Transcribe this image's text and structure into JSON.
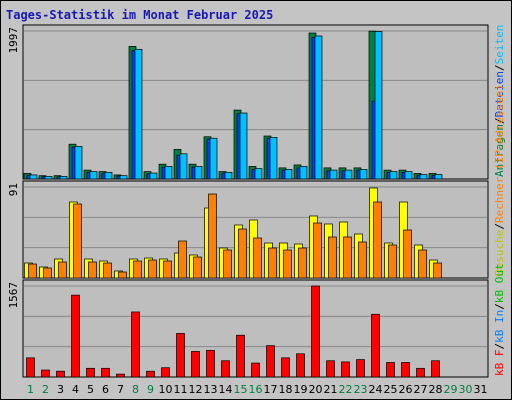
{
  "title": "Tages-Statistik im Monat Februar 2025",
  "legend": {
    "top": [
      {
        "text": "Anfragen",
        "color": "#008040"
      },
      {
        "text": "/",
        "color": "#000000"
      },
      {
        "text": "Dateien",
        "color": "#0040ff"
      },
      {
        "text": "/",
        "color": "#000000"
      },
      {
        "text": "Seiten",
        "color": "#00c0ff"
      }
    ],
    "middle": [
      {
        "text": "Besuche",
        "color": "#c0c000"
      },
      {
        "text": "/",
        "color": "#000000"
      },
      {
        "text": "Rechner (IP-Adressen)",
        "color": "#ff8000"
      }
    ],
    "bottom": [
      {
        "text": "kB F",
        "color": "#ff0000"
      },
      {
        "text": "/",
        "color": "#000000"
      },
      {
        "text": "kB In",
        "color": "#0080ff"
      },
      {
        "text": "/",
        "color": "#000000"
      },
      {
        "text": "kB Out",
        "color": "#00c000"
      }
    ]
  },
  "chart_data": [
    {
      "type": "bar",
      "ymax_label": "1997",
      "ylim": [
        0,
        1997
      ],
      "categories": [
        "1",
        "2",
        "3",
        "4",
        "5",
        "6",
        "7",
        "8",
        "9",
        "10",
        "11",
        "12",
        "13",
        "14",
        "15",
        "16",
        "17",
        "18",
        "19",
        "20",
        "21",
        "22",
        "23",
        "24",
        "25",
        "26",
        "27",
        "28",
        "29",
        "30",
        "31"
      ],
      "series": [
        {
          "name": "Anfragen",
          "color": "#008040",
          "values": [
            75,
            45,
            45,
            470,
            120,
            100,
            55,
            1790,
            100,
            200,
            400,
            200,
            570,
            100,
            930,
            170,
            580,
            150,
            190,
            1970,
            150,
            150,
            150,
            1995,
            120,
            120,
            75,
            75,
            0,
            0,
            0
          ]
        },
        {
          "name": "Dateien",
          "color": "#0040ff",
          "values": [
            50,
            30,
            30,
            430,
            90,
            80,
            40,
            1730,
            70,
            160,
            320,
            160,
            540,
            80,
            880,
            130,
            550,
            120,
            150,
            1910,
            110,
            110,
            120,
            1050,
            90,
            90,
            50,
            50,
            0,
            0,
            0
          ]
        },
        {
          "name": "Seiten",
          "color": "#00c0ff",
          "values": [
            55,
            35,
            35,
            440,
            100,
            90,
            45,
            1750,
            80,
            170,
            340,
            170,
            550,
            90,
            890,
            140,
            560,
            130,
            170,
            1930,
            120,
            120,
            130,
            1990,
            100,
            100,
            60,
            60,
            0,
            0,
            0
          ]
        }
      ]
    },
    {
      "type": "bar",
      "ymax_label": "91",
      "ylim": [
        0,
        91
      ],
      "categories": [
        "1",
        "2",
        "3",
        "4",
        "5",
        "6",
        "7",
        "8",
        "9",
        "10",
        "11",
        "12",
        "13",
        "14",
        "15",
        "16",
        "17",
        "18",
        "19",
        "20",
        "21",
        "22",
        "23",
        "24",
        "25",
        "26",
        "27",
        "28",
        "29",
        "30",
        "31"
      ],
      "series": [
        {
          "name": "Besuche",
          "color": "#ffff00",
          "values": [
            15,
            11,
            19,
            76,
            19,
            17,
            7,
            19,
            20,
            19,
            25,
            23,
            70,
            30,
            53,
            58,
            35,
            35,
            34,
            62,
            54,
            56,
            44,
            90,
            35,
            76,
            33,
            18,
            0,
            0,
            0
          ]
        },
        {
          "name": "Rechner (IP-Adressen)",
          "color": "#ff8000",
          "values": [
            14,
            10,
            16,
            74,
            16,
            15,
            6,
            17,
            18,
            17,
            37,
            21,
            84,
            28,
            49,
            40,
            30,
            28,
            30,
            55,
            41,
            41,
            36,
            76,
            33,
            48,
            28,
            15,
            0,
            0,
            0
          ]
        }
      ]
    },
    {
      "type": "bar",
      "ymax_label": "1567",
      "ylim": [
        0,
        1567
      ],
      "categories": [
        "1",
        "2",
        "3",
        "4",
        "5",
        "6",
        "7",
        "8",
        "9",
        "10",
        "11",
        "12",
        "13",
        "14",
        "15",
        "16",
        "17",
        "18",
        "19",
        "20",
        "21",
        "22",
        "23",
        "24",
        "25",
        "26",
        "27",
        "28",
        "29",
        "30",
        "31"
      ],
      "series": [
        {
          "name": "kB F",
          "color": "#ff0000",
          "values": [
            330,
            120,
            100,
            1410,
            150,
            150,
            50,
            1120,
            100,
            160,
            750,
            440,
            460,
            280,
            720,
            240,
            540,
            330,
            400,
            1567,
            280,
            260,
            300,
            1080,
            250,
            250,
            150,
            280,
            0,
            0,
            0
          ]
        }
      ]
    }
  ],
  "x_label_colors": {
    "weekday": "#000000",
    "weekend": "#008040"
  },
  "weekend_days": [
    "1",
    "2",
    "8",
    "9",
    "15",
    "16",
    "22",
    "23",
    "29",
    "30"
  ]
}
